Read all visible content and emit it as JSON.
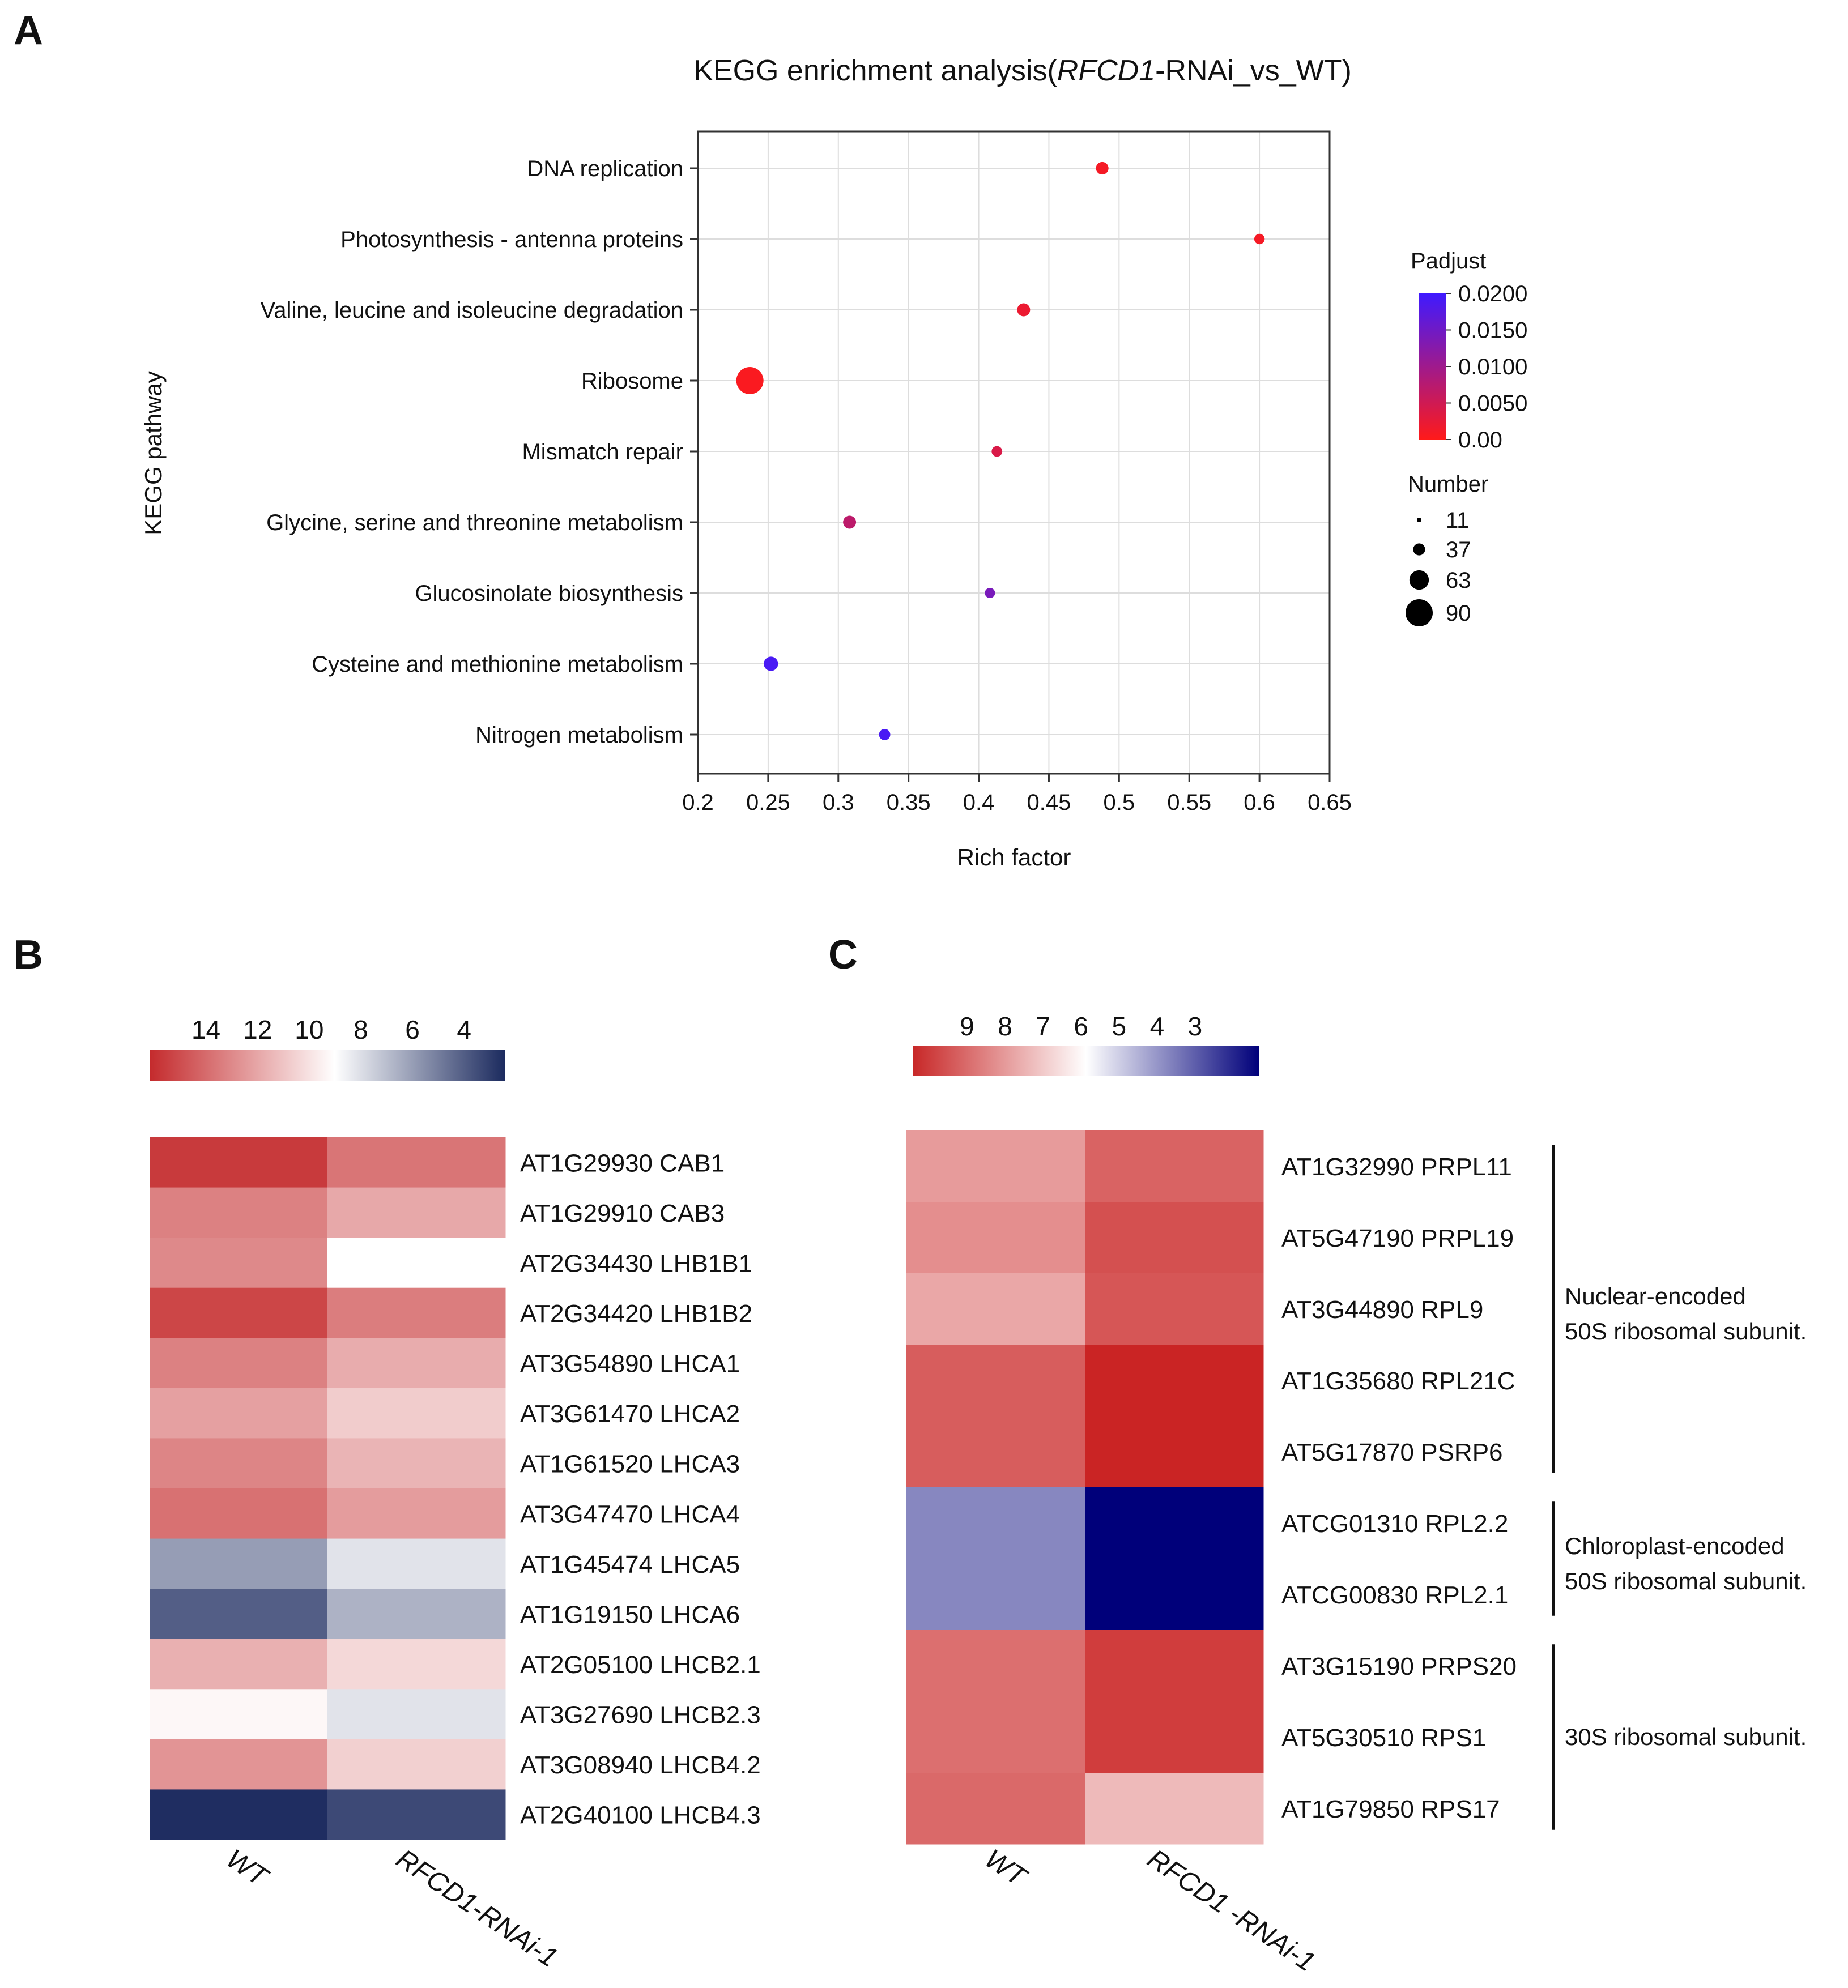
{
  "panels": {
    "a": "A",
    "b": "B",
    "c": "C"
  },
  "chart_data": [
    {
      "type": "scatter",
      "title_prefix": "KEGG enrichment analysis(",
      "title_italic": "RFCD1",
      "title_suffix": "-RNAi_vs_WT)",
      "xlabel": "Rich factor",
      "ylabel": "KEGG pathway",
      "xlim": [
        0.2,
        0.65
      ],
      "xticks": [
        "0.2",
        "0.25",
        "0.3",
        "0.35",
        "0.4",
        "0.45",
        "0.5",
        "0.55",
        "0.6",
        "0.65"
      ],
      "grid": true,
      "categories": [
        "DNA replication",
        "Photosynthesis - antenna proteins",
        "Valine, leucine and isoleucine degradation",
        "Ribosome",
        "Mismatch repair",
        "Glycine, serine and threonine metabolism",
        "Glucosinolate biosynthesis",
        "Cysteine and methionine metabolism",
        "Nitrogen metabolism"
      ],
      "points": [
        {
          "pathway": "DNA replication",
          "rich_factor": 0.488,
          "padjust": 0.001,
          "number": 22
        },
        {
          "pathway": "Photosynthesis - antenna proteins",
          "rich_factor": 0.6,
          "padjust": 0.001,
          "number": 12
        },
        {
          "pathway": "Valine, leucine and isoleucine degradation",
          "rich_factor": 0.432,
          "padjust": 0.002,
          "number": 24
        },
        {
          "pathway": "Ribosome",
          "rich_factor": 0.237,
          "padjust": 0.0005,
          "number": 90
        },
        {
          "pathway": "Mismatch repair",
          "rich_factor": 0.413,
          "padjust": 0.004,
          "number": 13
        },
        {
          "pathway": "Glycine, serine and threonine metabolism",
          "rich_factor": 0.308,
          "padjust": 0.007,
          "number": 24
        },
        {
          "pathway": "Glucosinolate biosynthesis",
          "rich_factor": 0.408,
          "padjust": 0.014,
          "number": 11
        },
        {
          "pathway": "Cysteine and methionine metabolism",
          "rich_factor": 0.252,
          "padjust": 0.019,
          "number": 30
        },
        {
          "pathway": "Nitrogen metabolism",
          "rich_factor": 0.333,
          "padjust": 0.019,
          "number": 16
        }
      ],
      "color_legend": {
        "title": "Padjust",
        "range": [
          0,
          0.02
        ],
        "ticks": [
          {
            "value": 0.02,
            "label": "0.0200"
          },
          {
            "value": 0.015,
            "label": "0.0150"
          },
          {
            "value": 0.01,
            "label": "0.0100"
          },
          {
            "value": 0.005,
            "label": "0.0050"
          },
          {
            "value": 0,
            "label": "0.00"
          }
        ],
        "low_color": "#ff1a1a",
        "high_color": "#3f1aff"
      },
      "size_legend": {
        "title": "Number",
        "values": [
          11,
          37,
          63,
          90
        ]
      }
    },
    {
      "type": "heatmap",
      "panel": "B",
      "columns": [
        "WT",
        "RFCD1-RNAi-1"
      ],
      "colorbar": {
        "ticks": [
          "14",
          "12",
          "10",
          "8",
          "6",
          "4"
        ],
        "vmax": 15,
        "vmid": 9.6,
        "vmin": 3.5
      },
      "rows": [
        {
          "label": "AT1G29930 CAB1",
          "values": [
            14.6,
            13.1
          ]
        },
        {
          "label": "AT1G29910 CAB3",
          "values": [
            12.8,
            11.8
          ]
        },
        {
          "label": "AT2G34430 LHB1B1",
          "values": [
            12.6,
            9.6
          ]
        },
        {
          "label": "AT2G34420 LHB1B2",
          "values": [
            14.3,
            12.9
          ]
        },
        {
          "label": "AT3G54890 LHCA1",
          "values": [
            12.8,
            11.7
          ]
        },
        {
          "label": "AT3G61470 LHCA2",
          "values": [
            12.0,
            10.9
          ]
        },
        {
          "label": "AT1G61520 LHCA3",
          "values": [
            12.7,
            11.5
          ]
        },
        {
          "label": "AT3G47470 LHCA4",
          "values": [
            13.2,
            12.1
          ]
        },
        {
          "label": "AT1G45474 LHCA5",
          "values": [
            6.8,
            8.8
          ]
        },
        {
          "label": "AT1G19150 LHCA6",
          "values": [
            5.0,
            7.4
          ]
        },
        {
          "label": "AT2G05100 LHCB2.1",
          "values": [
            11.6,
            10.6
          ]
        },
        {
          "label": "AT3G27690 LHCB2.3",
          "values": [
            9.8,
            8.8
          ]
        },
        {
          "label": "AT3G08940 LHCB4.2",
          "values": [
            12.3,
            10.8
          ]
        },
        {
          "label": "AT2G40100 LHCB4.3",
          "values": [
            3.6,
            4.4
          ]
        }
      ]
    },
    {
      "type": "heatmap",
      "panel": "C",
      "columns": [
        "WT",
        "RFCD1 -RNAi-1"
      ],
      "colorbar": {
        "ticks": [
          "9",
          "8",
          "7",
          "6",
          "5",
          "4",
          "3"
        ],
        "vmax": 9.7,
        "vmid": 6.1,
        "vmin": 2.5
      },
      "rows": [
        {
          "label": "AT1G32990 PRPL11",
          "values": [
            7.7,
            8.6
          ]
        },
        {
          "label": "AT5G47190 PRPL19",
          "values": [
            7.9,
            8.9
          ]
        },
        {
          "label": "AT3G44890 RPL9",
          "values": [
            7.5,
            8.8
          ]
        },
        {
          "label": "AT1G35680 RPL21C",
          "values": [
            8.7,
            9.6
          ]
        },
        {
          "label": "AT5G17870 PSRP6",
          "values": [
            8.7,
            9.6
          ]
        },
        {
          "label": "ATCG01310 RPL2.2",
          "values": [
            4.4,
            2.5
          ]
        },
        {
          "label": "ATCG00830 RPL2.1",
          "values": [
            4.4,
            2.5
          ]
        },
        {
          "label": "AT3G15190 PRPS20",
          "values": [
            8.4,
            9.2
          ]
        },
        {
          "label": "AT5G30510 RPS1",
          "values": [
            8.4,
            9.2
          ]
        },
        {
          "label": "AT1G79850 RPS17",
          "values": [
            8.5,
            7.2
          ]
        }
      ],
      "annotations": [
        {
          "line1": "Nuclear-encoded",
          "line2": "50S ribosomal subunit.",
          "from": 0,
          "to": 4
        },
        {
          "line1": "Chloroplast-encoded",
          "line2": "50S ribosomal subunit.",
          "from": 5,
          "to": 6
        },
        {
          "line1": "30S ribosomal subunit.",
          "line2": "",
          "from": 7,
          "to": 9
        }
      ]
    }
  ]
}
